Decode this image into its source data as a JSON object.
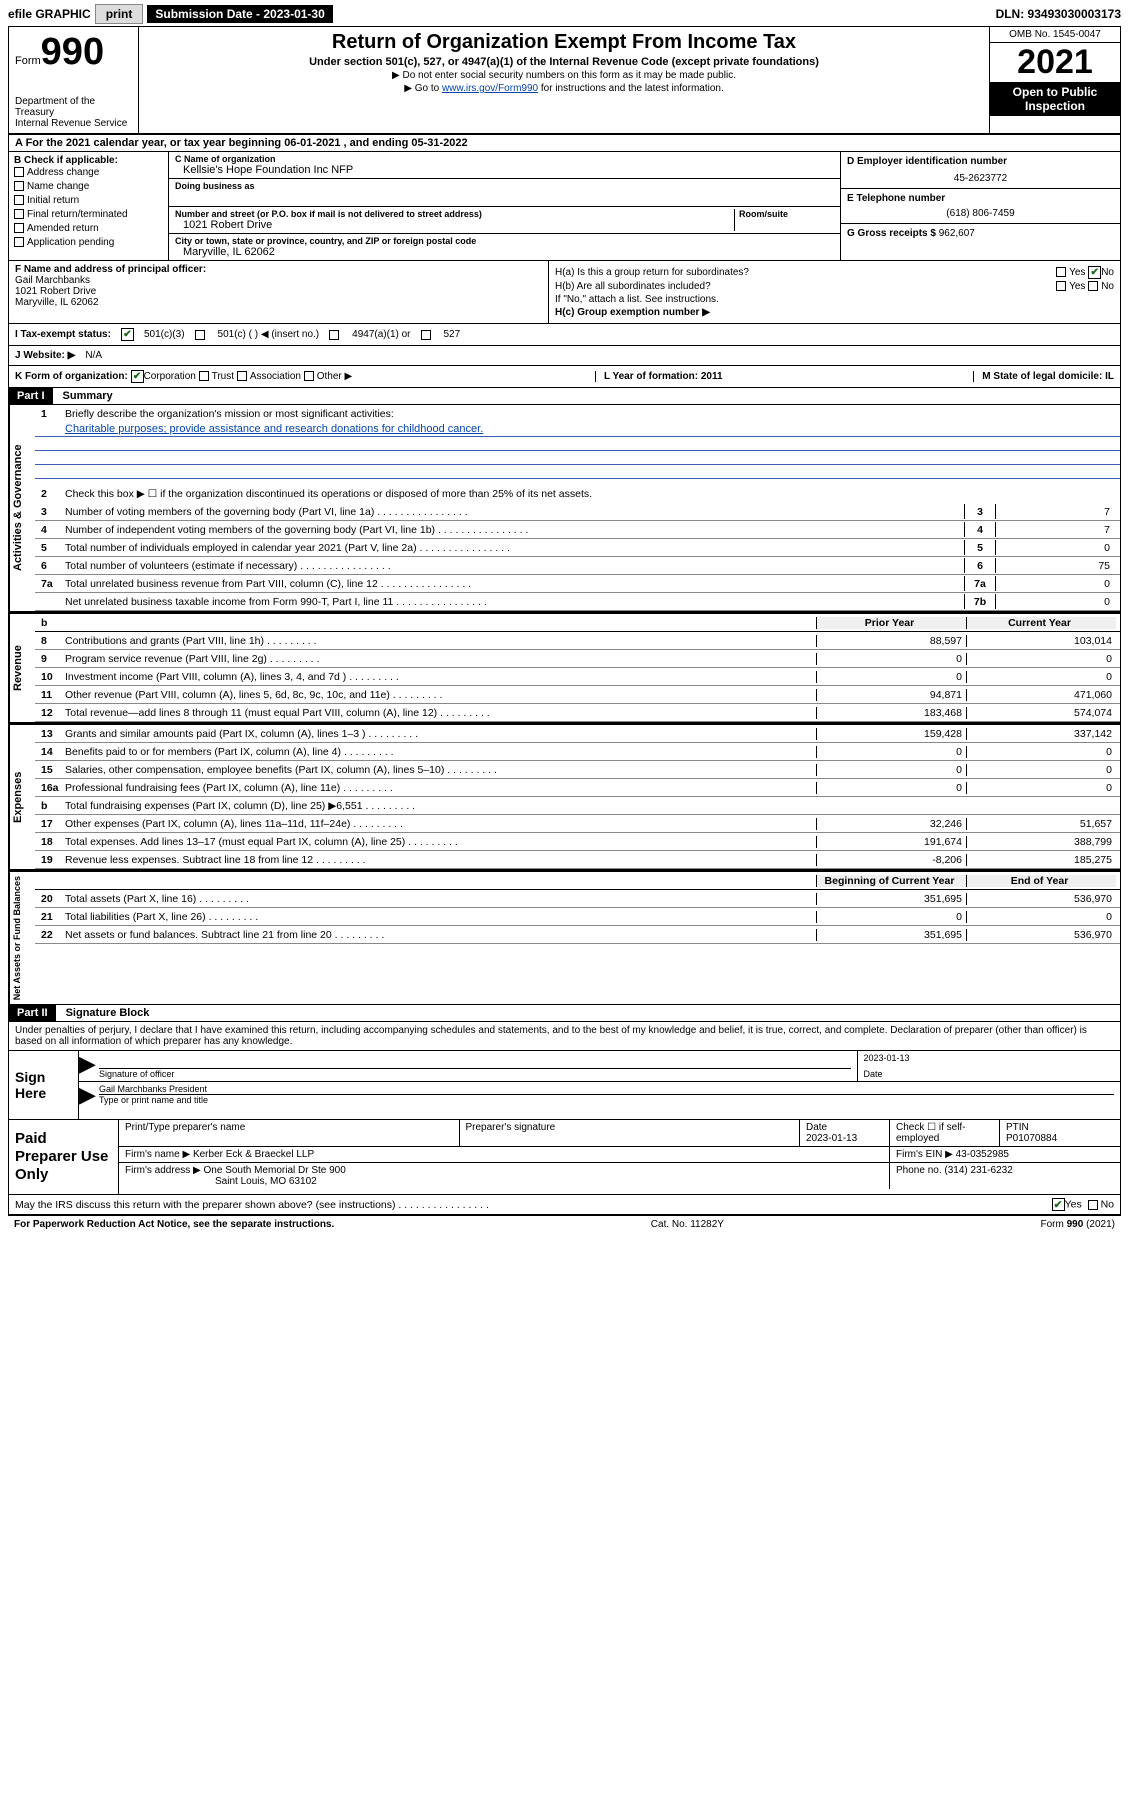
{
  "topbar": {
    "efile": "efile GRAPHIC",
    "print": "print",
    "subdate_label": "Submission Date - 2023-01-30",
    "dln": "DLN: 93493030003173"
  },
  "header": {
    "form_word": "Form",
    "form_num": "990",
    "dept": "Department of the Treasury\nInternal Revenue Service",
    "title": "Return of Organization Exempt From Income Tax",
    "subtitle": "Under section 501(c), 527, or 4947(a)(1) of the Internal Revenue Code (except private foundations)",
    "instr1": "▶ Do not enter social security numbers on this form as it may be made public.",
    "instr2_prefix": "▶ Go to ",
    "instr2_link": "www.irs.gov/Form990",
    "instr2_suffix": " for instructions and the latest information.",
    "omb": "OMB No. 1545-0047",
    "tax_year": "2021",
    "open": "Open to Public Inspection"
  },
  "rowA": "A For the 2021 calendar year, or tax year beginning 06-01-2021   , and ending 05-31-2022",
  "sectionB": {
    "label": "B Check if applicable:",
    "items": [
      "Address change",
      "Name change",
      "Initial return",
      "Final return/terminated",
      "Amended return",
      "Application pending"
    ]
  },
  "sectionC": {
    "name_label": "C Name of organization",
    "name": "Kellsie's Hope Foundation Inc NFP",
    "dba_label": "Doing business as",
    "dba": "",
    "addr_label": "Number and street (or P.O. box if mail is not delivered to street address)",
    "room_label": "Room/suite",
    "addr": "1021 Robert Drive",
    "city_label": "City or town, state or province, country, and ZIP or foreign postal code",
    "city": "Maryville, IL  62062"
  },
  "sectionD": {
    "label": "D Employer identification number",
    "value": "45-2623772"
  },
  "sectionE": {
    "label": "E Telephone number",
    "value": "(618) 806-7459"
  },
  "sectionG": {
    "label": "G Gross receipts $",
    "value": "962,607"
  },
  "sectionF": {
    "label": "F Name and address of principal officer:",
    "name": "Gail Marchbanks",
    "addr1": "1021 Robert Drive",
    "addr2": "Maryville, IL  62062"
  },
  "sectionH": {
    "ha": "H(a)  Is this a group return for subordinates?",
    "ha_yes": "Yes",
    "ha_no": "No",
    "hb": "H(b)  Are all subordinates included?",
    "hb_note": "If \"No,\" attach a list. See instructions.",
    "hc": "H(c)  Group exemption number ▶"
  },
  "sectionI": {
    "label": "I    Tax-exempt status:",
    "opts": [
      "501(c)(3)",
      "501(c) (   ) ◀ (insert no.)",
      "4947(a)(1) or",
      "527"
    ]
  },
  "sectionJ": {
    "label": "J    Website: ▶",
    "value": "N/A"
  },
  "sectionK": {
    "label": "K Form of organization:",
    "opts": [
      "Corporation",
      "Trust",
      "Association",
      "Other ▶"
    ],
    "L": "L Year of formation: 2011",
    "M": "M State of legal domicile: IL"
  },
  "partI": {
    "header": "Part I",
    "title": "Summary"
  },
  "summary": {
    "governance_label": "Activities & Governance",
    "revenue_label": "Revenue",
    "expenses_label": "Expenses",
    "netassets_label": "Net Assets or Fund Balances",
    "line1": "Briefly describe the organization's mission or most significant activities:",
    "mission": "Charitable purposes; provide assistance and research donations for childhood cancer.",
    "line2": "Check this box ▶ ☐  if the organization discontinued its operations or disposed of more than 25% of its net assets.",
    "gov_lines": [
      {
        "n": "3",
        "txt": "Number of voting members of the governing body (Part VI, line 1a)",
        "box": "3",
        "val": "7"
      },
      {
        "n": "4",
        "txt": "Number of independent voting members of the governing body (Part VI, line 1b)",
        "box": "4",
        "val": "7"
      },
      {
        "n": "5",
        "txt": "Total number of individuals employed in calendar year 2021 (Part V, line 2a)",
        "box": "5",
        "val": "0"
      },
      {
        "n": "6",
        "txt": "Total number of volunteers (estimate if necessary)",
        "box": "6",
        "val": "75"
      },
      {
        "n": "7a",
        "txt": "Total unrelated business revenue from Part VIII, column (C), line 12",
        "box": "7a",
        "val": "0"
      },
      {
        "n": "",
        "txt": "Net unrelated business taxable income from Form 990-T, Part I, line 11",
        "box": "7b",
        "val": "0"
      }
    ],
    "col_headers": {
      "b": "b",
      "prior": "Prior Year",
      "curr": "Current Year"
    },
    "rev_lines": [
      {
        "n": "8",
        "txt": "Contributions and grants (Part VIII, line 1h)",
        "prior": "88,597",
        "curr": "103,014"
      },
      {
        "n": "9",
        "txt": "Program service revenue (Part VIII, line 2g)",
        "prior": "0",
        "curr": "0"
      },
      {
        "n": "10",
        "txt": "Investment income (Part VIII, column (A), lines 3, 4, and 7d )",
        "prior": "0",
        "curr": "0"
      },
      {
        "n": "11",
        "txt": "Other revenue (Part VIII, column (A), lines 5, 6d, 8c, 9c, 10c, and 11e)",
        "prior": "94,871",
        "curr": "471,060"
      },
      {
        "n": "12",
        "txt": "Total revenue—add lines 8 through 11 (must equal Part VIII, column (A), line 12)",
        "prior": "183,468",
        "curr": "574,074"
      }
    ],
    "exp_lines": [
      {
        "n": "13",
        "txt": "Grants and similar amounts paid (Part IX, column (A), lines 1–3 )",
        "prior": "159,428",
        "curr": "337,142"
      },
      {
        "n": "14",
        "txt": "Benefits paid to or for members (Part IX, column (A), line 4)",
        "prior": "0",
        "curr": "0"
      },
      {
        "n": "15",
        "txt": "Salaries, other compensation, employee benefits (Part IX, column (A), lines 5–10)",
        "prior": "0",
        "curr": "0"
      },
      {
        "n": "16a",
        "txt": "Professional fundraising fees (Part IX, column (A), line 11e)",
        "prior": "0",
        "curr": "0"
      },
      {
        "n": "b",
        "txt": "Total fundraising expenses (Part IX, column (D), line 25) ▶6,551",
        "prior": "",
        "curr": "",
        "shade": true
      },
      {
        "n": "17",
        "txt": "Other expenses (Part IX, column (A), lines 11a–11d, 11f–24e)",
        "prior": "32,246",
        "curr": "51,657"
      },
      {
        "n": "18",
        "txt": "Total expenses. Add lines 13–17 (must equal Part IX, column (A), line 25)",
        "prior": "191,674",
        "curr": "388,799"
      },
      {
        "n": "19",
        "txt": "Revenue less expenses. Subtract line 18 from line 12",
        "prior": "-8,206",
        "curr": "185,275"
      }
    ],
    "na_headers": {
      "prior": "Beginning of Current Year",
      "curr": "End of Year"
    },
    "na_lines": [
      {
        "n": "20",
        "txt": "Total assets (Part X, line 16)",
        "prior": "351,695",
        "curr": "536,970"
      },
      {
        "n": "21",
        "txt": "Total liabilities (Part X, line 26)",
        "prior": "0",
        "curr": "0"
      },
      {
        "n": "22",
        "txt": "Net assets or fund balances. Subtract line 21 from line 20",
        "prior": "351,695",
        "curr": "536,970"
      }
    ]
  },
  "partII": {
    "header": "Part II",
    "title": "Signature Block"
  },
  "sig": {
    "intro": "Under penalties of perjury, I declare that I have examined this return, including accompanying schedules and statements, and to the best of my knowledge and belief, it is true, correct, and complete. Declaration of preparer (other than officer) is based on all information of which preparer has any knowledge.",
    "sign_here": "Sign Here",
    "sig_of_officer": "Signature of officer",
    "sig_date": "2023-01-13",
    "date_label": "Date",
    "officer_name": "Gail Marchbanks  President",
    "type_name": "Type or print name and title",
    "paid_prep": "Paid Preparer Use Only",
    "prep_name_label": "Print/Type preparer's name",
    "prep_sig_label": "Preparer's signature",
    "prep_date_label": "Date",
    "prep_date": "2023-01-13",
    "chk_self": "Check ☐ if self-employed",
    "ptin_label": "PTIN",
    "ptin": "P01070884",
    "firm_name_label": "Firm's name    ▶",
    "firm_name": "Kerber Eck & Braeckel LLP",
    "firm_ein_label": "Firm's EIN ▶",
    "firm_ein": "43-0352985",
    "firm_addr_label": "Firm's address ▶",
    "firm_addr1": "One South Memorial Dr Ste 900",
    "firm_addr2": "Saint Louis, MO  63102",
    "phone_label": "Phone no.",
    "phone": "(314) 231-6232",
    "discuss": "May the IRS discuss this return with the preparer shown above? (see instructions)",
    "yes": "Yes",
    "no": "No"
  },
  "footer": {
    "left": "For Paperwork Reduction Act Notice, see the separate instructions.",
    "mid": "Cat. No. 11282Y",
    "right": "Form 990 (2021)"
  }
}
